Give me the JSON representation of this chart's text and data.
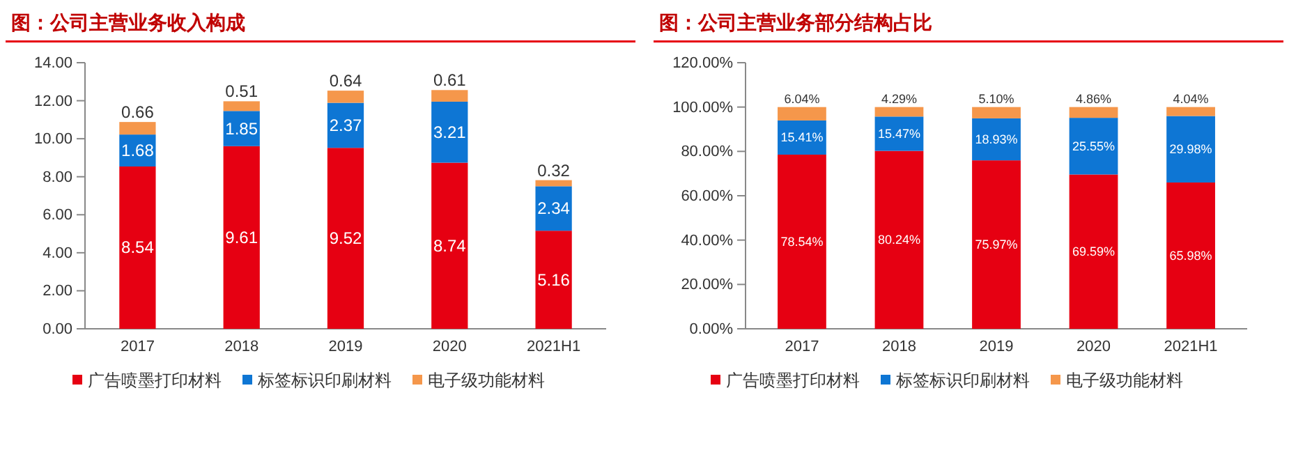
{
  "chart_data": [
    {
      "type": "bar",
      "title": "图：公司主营业务收入构成",
      "stacked": true,
      "categories": [
        "2017",
        "2018",
        "2019",
        "2020",
        "2021H1"
      ],
      "series": [
        {
          "name": "广告喷墨打印材料",
          "color": "#e60012",
          "values": [
            8.54,
            9.61,
            9.52,
            8.74,
            5.16
          ]
        },
        {
          "name": "标签标识印刷材料",
          "color": "#0e76d4",
          "values": [
            1.68,
            1.85,
            2.37,
            3.21,
            2.34
          ]
        },
        {
          "name": "电子级功能材料",
          "color": "#f5974b",
          "values": [
            0.66,
            0.51,
            0.64,
            0.61,
            0.32
          ]
        }
      ],
      "ylim": [
        0,
        14
      ],
      "yticks": [
        {
          "value": 0,
          "label": "0.00"
        },
        {
          "value": 2,
          "label": "2.00"
        },
        {
          "value": 4,
          "label": "4.00"
        },
        {
          "value": 6,
          "label": "6.00"
        },
        {
          "value": 8,
          "label": "8.00"
        },
        {
          "value": 10,
          "label": "10.00"
        },
        {
          "value": 12,
          "label": "12.00"
        },
        {
          "value": 14,
          "label": "14.00"
        }
      ],
      "data_labels": true,
      "legend": "bottom"
    },
    {
      "type": "bar",
      "title": "图：公司主营业务部分结构占比",
      "stacked": true,
      "categories": [
        "2017",
        "2018",
        "2019",
        "2020",
        "2021H1"
      ],
      "series": [
        {
          "name": "广告喷墨打印材料",
          "color": "#e60012",
          "values": [
            78.54,
            80.24,
            75.97,
            69.59,
            65.98
          ],
          "value_labels": [
            "78.54%",
            "80.24%",
            "75.97%",
            "69.59%",
            "65.98%"
          ]
        },
        {
          "name": "标签标识印刷材料",
          "color": "#0e76d4",
          "values": [
            15.41,
            15.47,
            18.93,
            25.55,
            29.98
          ],
          "value_labels": [
            "15.41%",
            "15.47%",
            "18.93%",
            "25.55%",
            "29.98%"
          ]
        },
        {
          "name": "电子级功能材料",
          "color": "#f5974b",
          "values": [
            6.04,
            4.29,
            5.1,
            4.86,
            4.04
          ],
          "value_labels": [
            "6.04%",
            "4.29%",
            "5.10%",
            "4.86%",
            "4.04%"
          ]
        }
      ],
      "ylim": [
        0,
        120
      ],
      "yticks": [
        {
          "value": 0,
          "label": "0.00%"
        },
        {
          "value": 20,
          "label": "20.00%"
        },
        {
          "value": 40,
          "label": "40.00%"
        },
        {
          "value": 60,
          "label": "60.00%"
        },
        {
          "value": 80,
          "label": "80.00%"
        },
        {
          "value": 100,
          "label": "100.00%"
        },
        {
          "value": 120,
          "label": "120.00%"
        }
      ],
      "legend": "bottom"
    }
  ]
}
